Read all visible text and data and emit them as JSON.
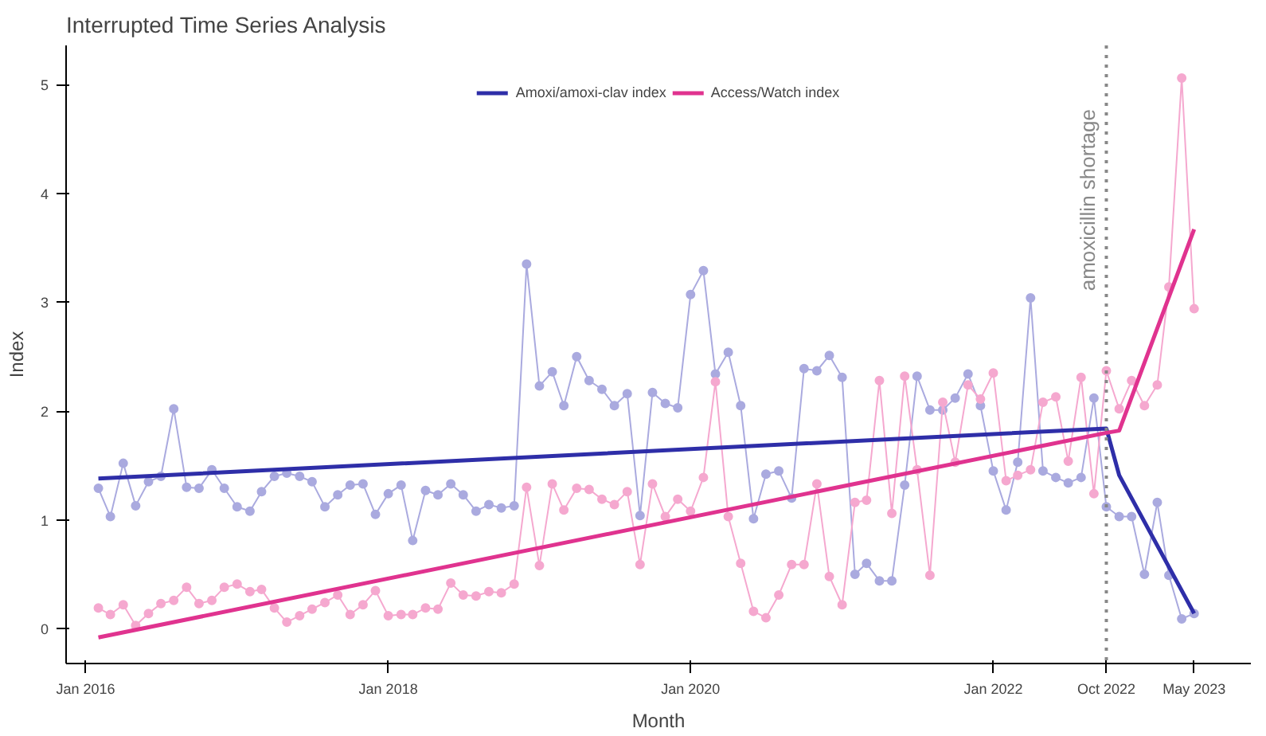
{
  "chart_data": {
    "type": "line",
    "title": "Interrupted Time Series Analysis",
    "xlabel": "Month",
    "ylabel": "Index",
    "x": [
      "2016-02",
      "2016-03",
      "2016-04",
      "2016-05",
      "2016-06",
      "2016-07",
      "2016-08",
      "2016-09",
      "2016-10",
      "2016-11",
      "2016-12",
      "2017-01",
      "2017-02",
      "2017-03",
      "2017-04",
      "2017-05",
      "2017-06",
      "2017-07",
      "2017-08",
      "2017-09",
      "2017-10",
      "2017-11",
      "2017-12",
      "2018-01",
      "2018-02",
      "2018-03",
      "2018-04",
      "2018-05",
      "2018-06",
      "2018-07",
      "2018-08",
      "2018-09",
      "2018-10",
      "2018-11",
      "2018-12",
      "2019-01",
      "2019-02",
      "2019-03",
      "2019-04",
      "2019-05",
      "2019-06",
      "2019-07",
      "2019-08",
      "2019-09",
      "2019-10",
      "2019-11",
      "2019-12",
      "2020-01",
      "2020-02",
      "2020-03",
      "2020-04",
      "2020-05",
      "2020-06",
      "2020-07",
      "2020-08",
      "2020-09",
      "2020-10",
      "2020-11",
      "2020-12",
      "2021-01",
      "2021-02",
      "2021-03",
      "2021-04",
      "2021-05",
      "2021-06",
      "2021-07",
      "2021-08",
      "2021-09",
      "2021-10",
      "2021-11",
      "2021-12",
      "2022-01",
      "2022-02",
      "2022-03",
      "2022-04",
      "2022-05",
      "2022-06",
      "2022-07",
      "2022-08",
      "2022-09",
      "2022-10",
      "2022-11",
      "2022-12",
      "2023-01",
      "2023-02",
      "2023-03",
      "2023-04",
      "2023-05"
    ],
    "xlim": [
      "2015-11-15",
      "2023-09-15"
    ],
    "ylim": [
      -0.32,
      5.36
    ],
    "xticks": [
      {
        "value": "2016-01",
        "label": "Jan 2016"
      },
      {
        "value": "2018-01",
        "label": "Jan 2018"
      },
      {
        "value": "2020-01",
        "label": "Jan 2020"
      },
      {
        "value": "2022-01",
        "label": "Jan 2022"
      },
      {
        "value": "2022-10",
        "label": "Oct 2022"
      },
      {
        "value": "2023-05",
        "label": "May 2023"
      }
    ],
    "yticks": [
      0,
      1,
      2,
      3,
      4,
      5
    ],
    "grid": false,
    "legend": "top",
    "ref_lines": [
      {
        "axis": "x",
        "value": "2022-10",
        "label": "amoxicillin shortage",
        "color": "#888888",
        "line_style": "dotted"
      }
    ],
    "series": [
      {
        "color": "#aaaadf",
        "marker": "circle",
        "values": [
          1.29,
          1.03,
          1.52,
          1.13,
          1.35,
          1.4,
          2.02,
          1.3,
          1.29,
          1.46,
          1.29,
          1.12,
          1.08,
          1.26,
          1.4,
          1.43,
          1.4,
          1.35,
          1.12,
          1.23,
          1.32,
          1.33,
          1.05,
          1.24,
          1.32,
          0.81,
          1.27,
          1.23,
          1.33,
          1.23,
          1.08,
          1.14,
          1.11,
          1.13,
          3.35,
          2.23,
          2.36,
          2.05,
          2.5,
          2.28,
          2.2,
          2.05,
          2.16,
          1.04,
          2.17,
          2.07,
          2.03,
          3.07,
          3.29,
          2.34,
          2.54,
          2.05,
          1.01,
          1.42,
          1.45,
          1.2,
          2.39,
          2.37,
          2.51,
          2.31,
          0.5,
          0.6,
          0.44,
          0.44,
          1.32,
          2.32,
          2.01,
          2.01,
          2.12,
          2.34,
          2.05,
          1.45,
          1.09,
          1.53,
          3.04,
          1.45,
          1.39,
          1.34,
          1.39,
          2.12,
          1.12,
          1.03,
          1.03,
          0.5,
          1.16,
          0.49,
          0.09,
          0.14
        ]
      },
      {
        "color": "#f5a8cf",
        "marker": "circle",
        "values": [
          0.19,
          0.13,
          0.22,
          0.03,
          0.14,
          0.23,
          0.26,
          0.38,
          0.23,
          0.26,
          0.38,
          0.41,
          0.34,
          0.36,
          0.19,
          0.06,
          0.12,
          0.18,
          0.24,
          0.31,
          0.13,
          0.22,
          0.35,
          0.12,
          0.13,
          0.13,
          0.19,
          0.18,
          0.42,
          0.31,
          0.3,
          0.34,
          0.33,
          0.41,
          1.3,
          0.58,
          1.33,
          1.09,
          1.29,
          1.28,
          1.19,
          1.14,
          1.26,
          0.59,
          1.33,
          1.03,
          1.19,
          1.08,
          1.39,
          2.27,
          1.03,
          0.6,
          0.16,
          0.1,
          0.31,
          0.59,
          0.59,
          1.33,
          0.48,
          0.22,
          1.16,
          1.18,
          2.28,
          1.06,
          2.32,
          1.46,
          0.49,
          2.08,
          1.53,
          2.24,
          2.11,
          2.35,
          1.36,
          1.41,
          1.46,
          2.08,
          2.13,
          1.54,
          2.31,
          1.24,
          2.37,
          2.02,
          2.28,
          2.05,
          2.24,
          3.14,
          5.06,
          2.94
        ]
      },
      {
        "name": "Amoxi/amoxi-clav index",
        "color": "#2e2ea8",
        "marker": "none",
        "x": [
          "2016-02",
          "2022-10",
          "2022-11",
          "2023-05"
        ],
        "values": [
          1.38,
          1.84,
          1.41,
          0.14
        ]
      },
      {
        "name": "Access/Watch index",
        "color": "#e0338f",
        "marker": "none",
        "x": [
          "2016-02",
          "2022-10",
          "2022-11",
          "2023-05"
        ],
        "values": [
          -0.08,
          1.8,
          1.82,
          3.67
        ]
      }
    ]
  }
}
